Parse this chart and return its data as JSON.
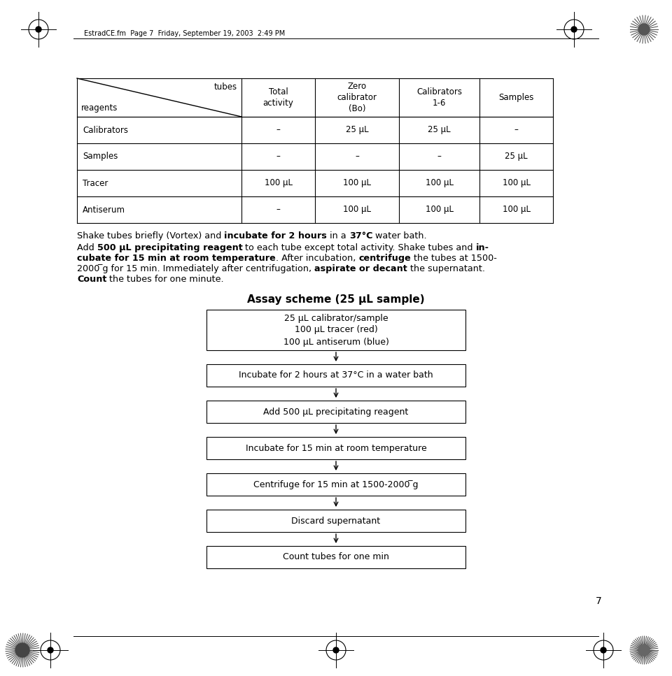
{
  "bg_color": "#ffffff",
  "page_number": "7",
  "header_text": "EstradCE.fm  Page 7  Friday, September 19, 2003  2:49 PM",
  "table": {
    "col_headers": [
      "Total\nactivity",
      "Zero\ncalibrator\n(Bo)",
      "Calibrators\n1-6",
      "Samples"
    ],
    "row_headers": [
      "Calibrators",
      "Samples",
      "Tracer",
      "Antiserum"
    ],
    "data": [
      [
        "–",
        "25 μL",
        "25 μL",
        "–"
      ],
      [
        "–",
        "–",
        "–",
        "25 μL"
      ],
      [
        "100 μL",
        "100 μL",
        "100 μL",
        "100 μL"
      ],
      [
        "–",
        "100 μL",
        "100 μL",
        "100 μL"
      ]
    ]
  },
  "flowchart_title": "Assay scheme (25 μL sample)",
  "flowchart_boxes": [
    "25 μL calibrator/sample\n100 μL tracer (red)\n100 μL antiserum (blue)",
    "Incubate for 2 hours at 37°C in a water bath",
    "Add 500 μL precipitating reagent",
    "Incubate for 15 min at room temperature",
    "Centrifuge for 15 min at 1500-2000 ̅g",
    "Discard supernatant",
    "Count tubes for one min"
  ]
}
